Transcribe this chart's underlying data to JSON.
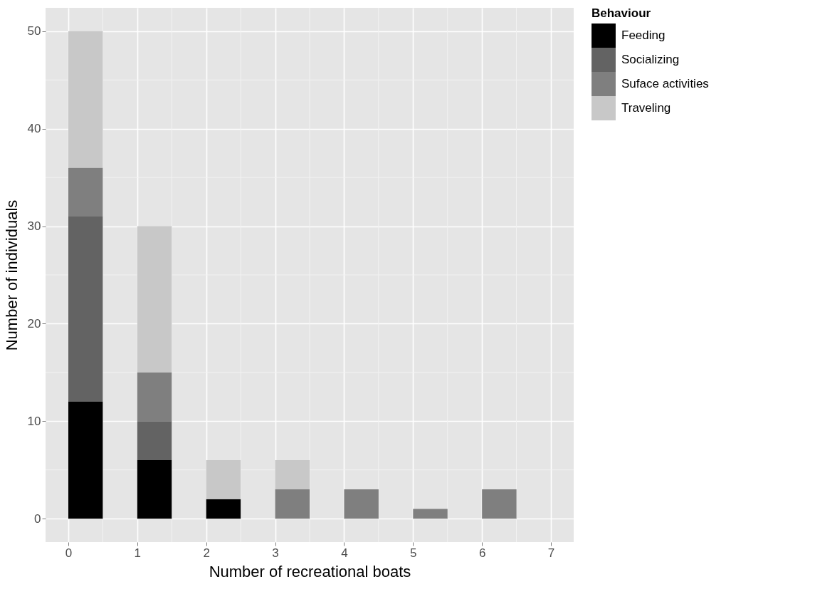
{
  "chart_data": {
    "type": "bar",
    "stacked": true,
    "xlabel": "Number of recreational boats",
    "ylabel": "Number of individuals",
    "legend_title": "Behaviour",
    "x": [
      0.25,
      1.25,
      2.25,
      3.25,
      4.25,
      5.25,
      6.25
    ],
    "series": [
      {
        "name": "Feeding",
        "color": "#000000",
        "values": [
          12,
          6,
          2,
          null,
          null,
          null,
          null
        ]
      },
      {
        "name": "Socializing",
        "color": "#636363",
        "values": [
          19,
          4,
          null,
          null,
          null,
          null,
          null
        ]
      },
      {
        "name": "Suface activities",
        "color": "#7f7f7f",
        "values": [
          5,
          5,
          null,
          3,
          3,
          1,
          3
        ]
      },
      {
        "name": "Traveling",
        "color": "#c8c8c8",
        "values": [
          14,
          15,
          4,
          3,
          null,
          null,
          null
        ]
      }
    ],
    "xlim": [
      -0.33,
      7.33
    ],
    "xticks": [
      0,
      1,
      2,
      3,
      4,
      5,
      6,
      7
    ],
    "ylim": [
      -2.4,
      52.4
    ],
    "yticks": [
      0,
      10,
      20,
      30,
      40,
      50
    ],
    "grid": true,
    "legend": "right"
  }
}
